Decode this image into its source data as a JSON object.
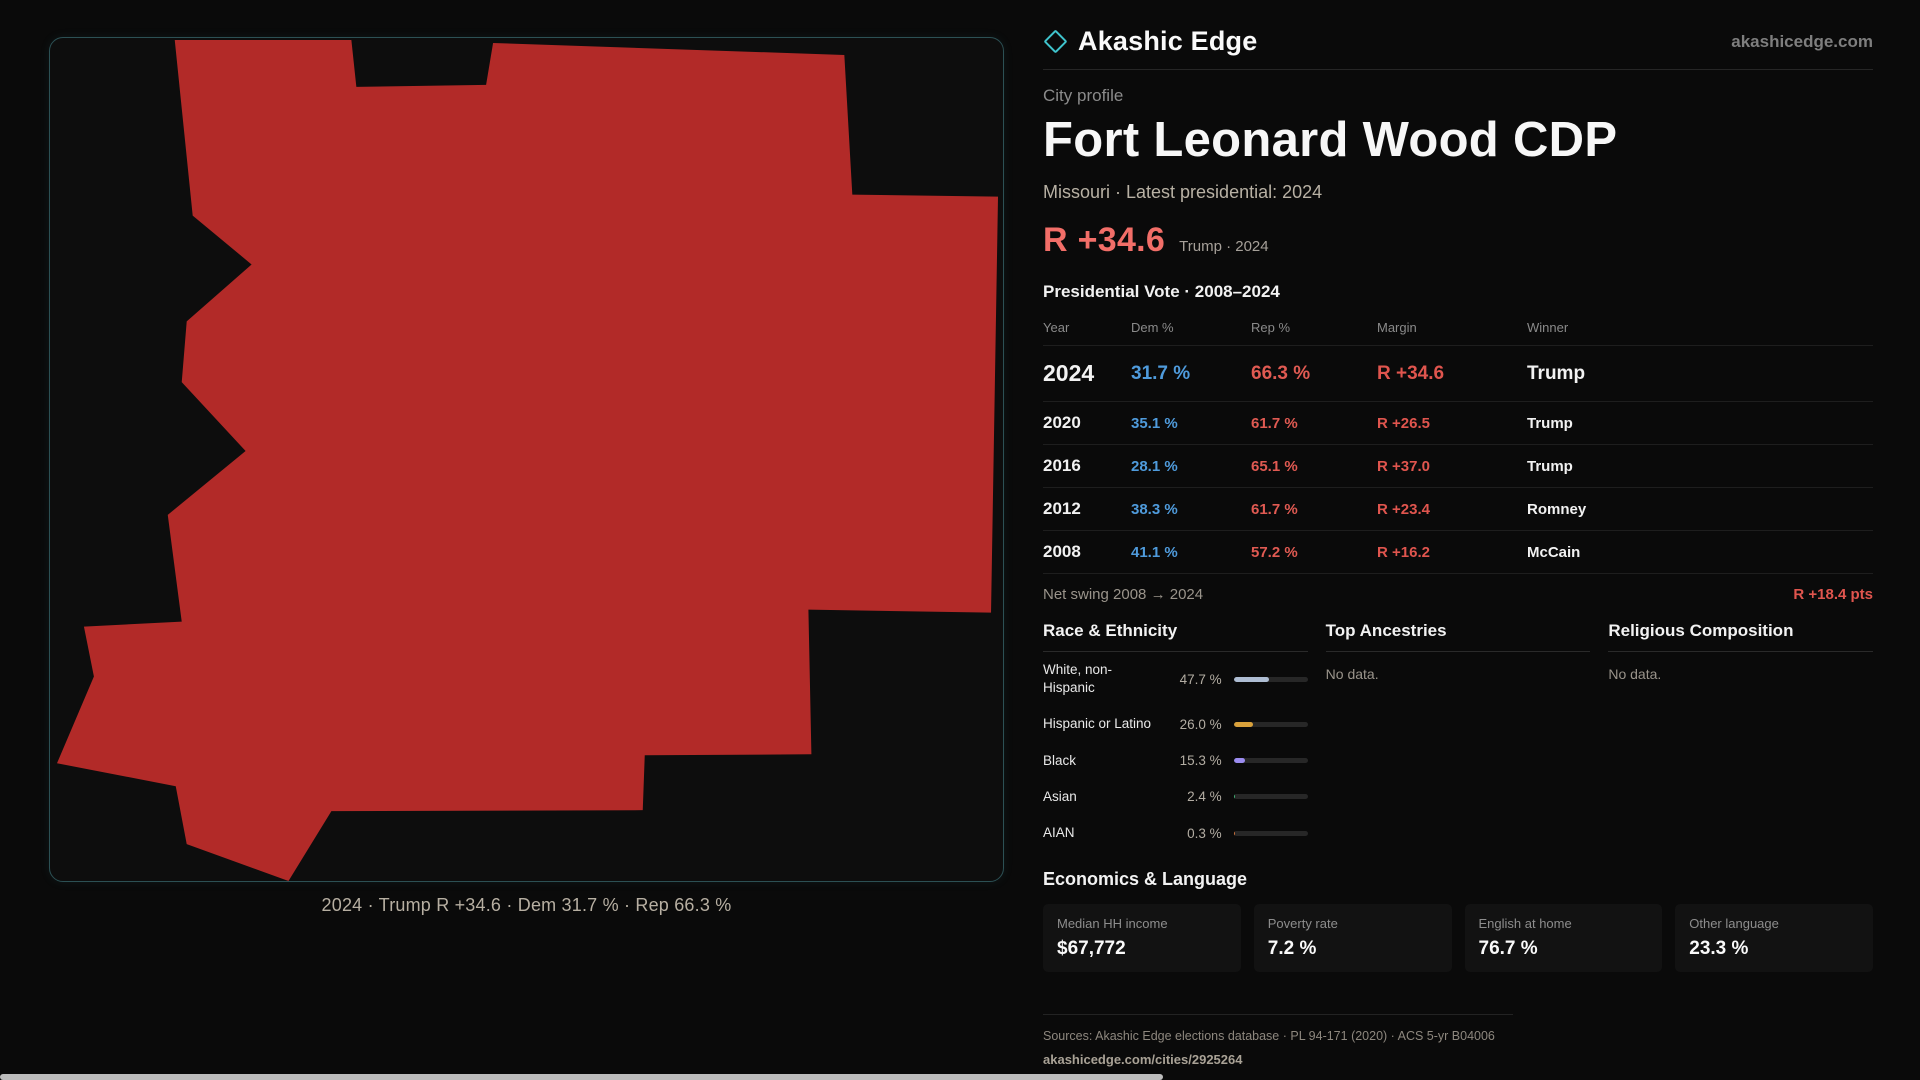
{
  "brand": {
    "name": "Akashic Edge",
    "domain": "akashicedge.com",
    "accent_color": "#3fc4cd"
  },
  "profile": {
    "kicker": "City profile",
    "title": "Fort Leonard Wood CDP",
    "subtitle": "Missouri · Latest presidential: 2024",
    "headline_margin": "R +34.6",
    "headline_context": "Trump · 2024"
  },
  "map": {
    "caption": "2024 · Trump R +34.6 · Dem 31.7 % · Rep 66.3 %",
    "fill_color": "#b22a28",
    "background_color": "#0d0d0d",
    "border_color": "#2c5054"
  },
  "election_table": {
    "title": "Presidential Vote · 2008–2024",
    "columns": [
      "Year",
      "Dem %",
      "Rep %",
      "Margin",
      "Winner"
    ],
    "rows": [
      {
        "year": "2024",
        "dem": "31.7 %",
        "rep": "66.3 %",
        "margin": "R +34.6",
        "winner": "Trump"
      },
      {
        "year": "2020",
        "dem": "35.1 %",
        "rep": "61.7 %",
        "margin": "R +26.5",
        "winner": "Trump"
      },
      {
        "year": "2016",
        "dem": "28.1 %",
        "rep": "65.1 %",
        "margin": "R +37.0",
        "winner": "Trump"
      },
      {
        "year": "2012",
        "dem": "38.3 %",
        "rep": "61.7 %",
        "margin": "R +23.4",
        "winner": "Romney"
      },
      {
        "year": "2008",
        "dem": "41.1 %",
        "rep": "57.2 %",
        "margin": "R +16.2",
        "winner": "McCain"
      }
    ],
    "dem_color": "#4f9bdc",
    "rep_color": "#e05a52",
    "net_swing_label": "Net swing 2008 → 2024",
    "net_swing_value": "R +18.4 pts"
  },
  "demographics": {
    "race": {
      "title": "Race & Ethnicity",
      "rows": [
        {
          "label": "White, non-Hispanic",
          "value": "47.7 %",
          "pct": 47.7,
          "color": "#aebdd3"
        },
        {
          "label": "Hispanic or Latino",
          "value": "26.0 %",
          "pct": 26.0,
          "color": "#d9a13b"
        },
        {
          "label": "Black",
          "value": "15.3 %",
          "pct": 15.3,
          "color": "#9b8cf0"
        },
        {
          "label": "Asian",
          "value": "2.4 %",
          "pct": 2.4,
          "color": "#3fae72"
        },
        {
          "label": "AIAN",
          "value": "0.3 %",
          "pct": 0.3,
          "color": "#c9703a"
        }
      ]
    },
    "ancestries": {
      "title": "Top Ancestries",
      "empty": "No data."
    },
    "religion": {
      "title": "Religious Composition",
      "empty": "No data."
    }
  },
  "economics": {
    "title": "Economics & Language",
    "stats": [
      {
        "label": "Median HH income",
        "value": "$67,772"
      },
      {
        "label": "Poverty rate",
        "value": "7.2 %"
      },
      {
        "label": "English at home",
        "value": "76.7 %"
      },
      {
        "label": "Other language",
        "value": "23.3 %"
      }
    ]
  },
  "footer": {
    "sources": "Sources: Akashic Edge elections database · PL 94-171 (2020) · ACS 5-yr B04006",
    "permalink": "akashicedge.com/cities/2925264"
  }
}
